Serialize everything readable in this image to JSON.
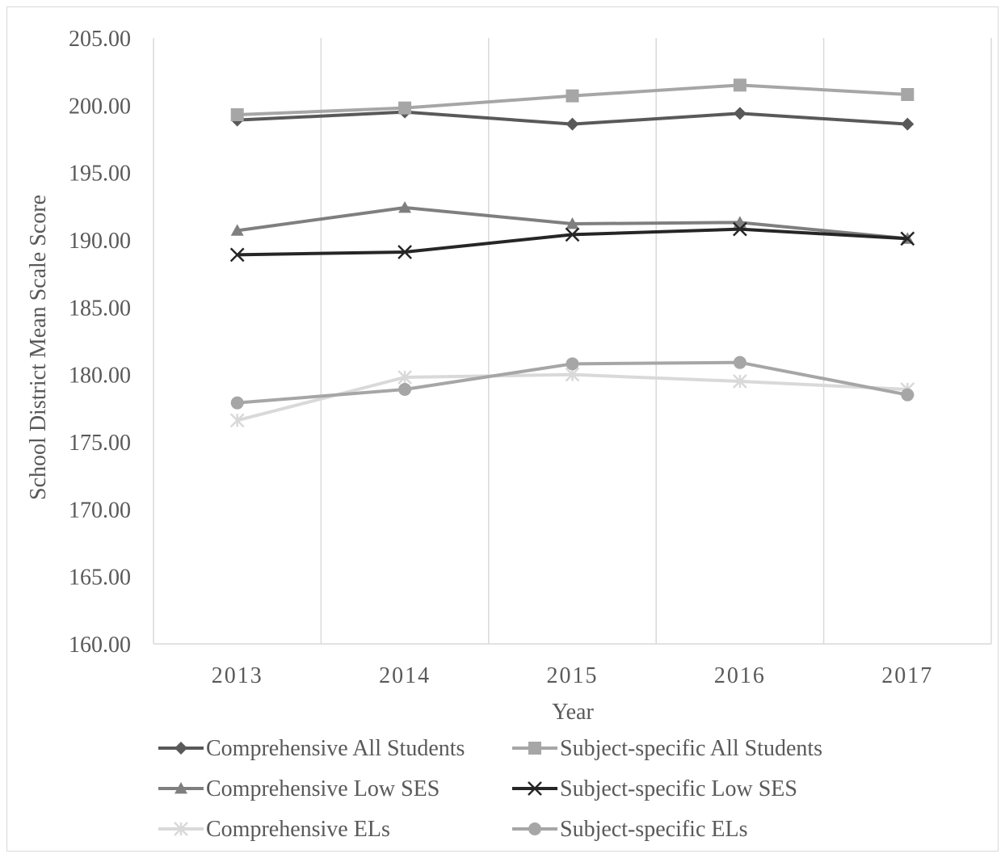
{
  "chart_data": {
    "type": "line",
    "title": "",
    "xlabel": "Year",
    "ylabel": "School District Mean Scale Score",
    "categories": [
      "2013",
      "2014",
      "2015",
      "2016",
      "2017"
    ],
    "ylim": [
      160,
      205
    ],
    "yticks": [
      "160.00",
      "165.00",
      "170.00",
      "175.00",
      "180.00",
      "185.00",
      "190.00",
      "195.00",
      "200.00",
      "205.00"
    ],
    "grid": "vertical",
    "legend_position": "bottom",
    "series": [
      {
        "name": "Comprehensive All Students",
        "values": [
          198.9,
          199.5,
          198.6,
          199.4,
          198.6
        ],
        "color": "#595959",
        "marker": "diamond"
      },
      {
        "name": "Subject-specific All Students",
        "values": [
          199.3,
          199.8,
          200.7,
          201.5,
          200.8
        ],
        "color": "#a6a6a6",
        "marker": "square"
      },
      {
        "name": "Comprehensive Low SES",
        "values": [
          190.7,
          192.4,
          191.2,
          191.3,
          190.1
        ],
        "color": "#7f7f7f",
        "marker": "triangle"
      },
      {
        "name": "Subject-specific Low SES",
        "values": [
          188.9,
          189.1,
          190.4,
          190.8,
          190.1
        ],
        "color": "#262626",
        "marker": "x"
      },
      {
        "name": "Comprehensive ELs",
        "values": [
          176.6,
          179.8,
          180.0,
          179.5,
          178.9
        ],
        "color": "#d9d9d9",
        "marker": "star"
      },
      {
        "name": "Subject-specific ELs",
        "values": [
          177.9,
          178.9,
          180.8,
          180.9,
          178.5
        ],
        "color": "#a6a6a6",
        "marker": "circle"
      }
    ]
  }
}
